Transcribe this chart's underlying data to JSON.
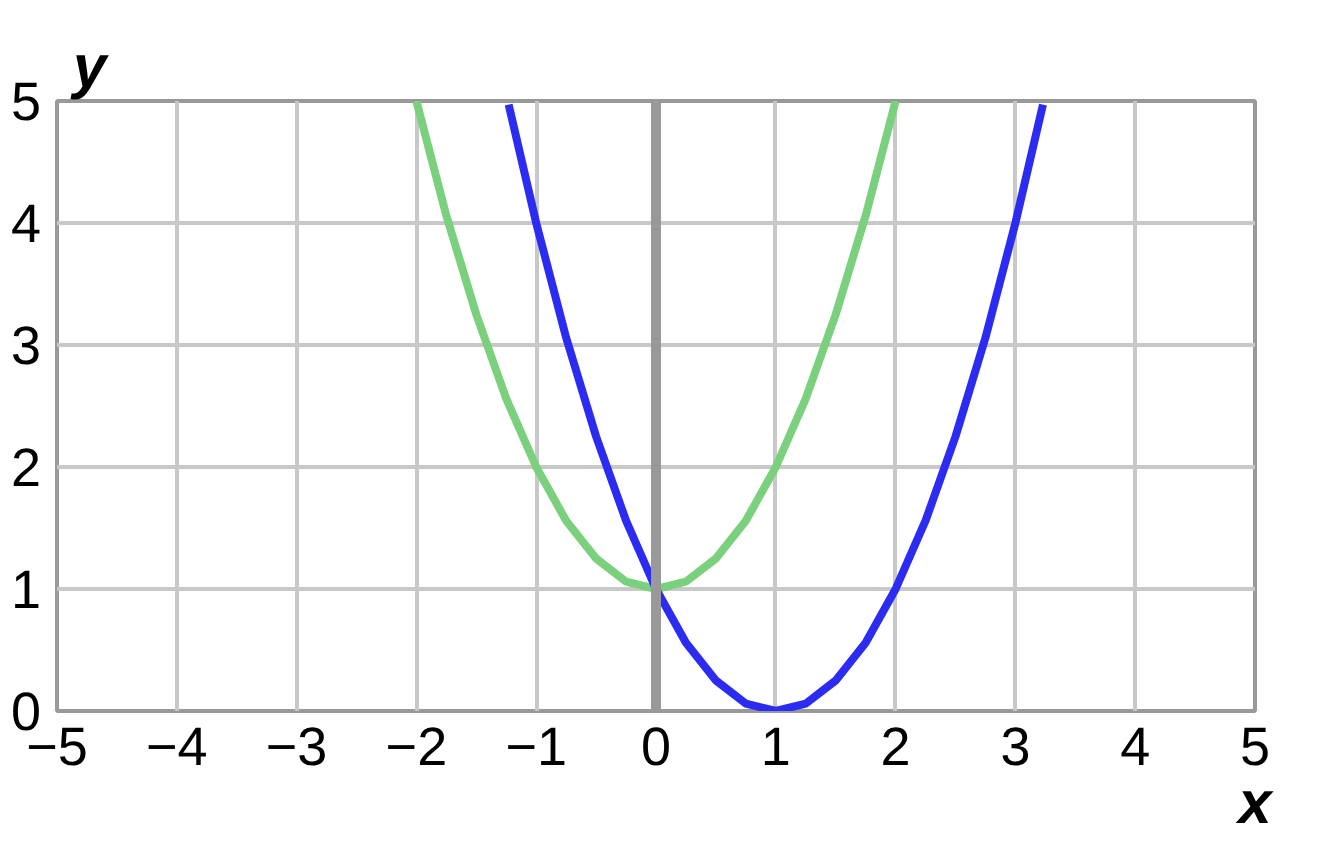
{
  "chart_data": {
    "type": "line",
    "xlabel": "x",
    "ylabel": "y",
    "xlim": [
      -5,
      5
    ],
    "ylim": [
      0,
      5
    ],
    "xticks": [
      {
        "value": -5,
        "label": "−5"
      },
      {
        "value": -4,
        "label": "−4"
      },
      {
        "value": -3,
        "label": "−3"
      },
      {
        "value": -2,
        "label": "−2"
      },
      {
        "value": -1,
        "label": "−1"
      },
      0,
      1,
      2,
      3,
      4,
      5
    ],
    "yticks": [
      0,
      1,
      2,
      3,
      4,
      5
    ],
    "grid": true,
    "marker": "none",
    "line_style": "solid",
    "ref_lines": [
      {
        "axis": "x",
        "value": 0,
        "color": "#999999"
      }
    ],
    "series": [
      {
        "color": "#7ad07c",
        "x": [
          -2,
          -1.75,
          -1.5,
          -1.25,
          -1,
          -0.75,
          -0.5,
          -0.25,
          0,
          0.25,
          0.5,
          0.75,
          1,
          1.25,
          1.5,
          1.75,
          2
        ],
        "values": [
          5,
          4.06,
          3.25,
          2.56,
          2,
          1.56,
          1.25,
          1.06,
          1,
          1.06,
          1.25,
          1.56,
          2,
          2.56,
          3.25,
          4.06,
          5
        ]
      },
      {
        "color": "#2b2bf2",
        "x": [
          -1.23,
          -1,
          -0.75,
          -0.5,
          -0.25,
          0,
          0.25,
          0.5,
          0.75,
          1,
          1.25,
          1.5,
          1.75,
          2,
          2.25,
          2.5,
          2.75,
          3,
          3.23
        ],
        "values": [
          4.97,
          4,
          3.06,
          2.25,
          1.56,
          1,
          0.56,
          0.25,
          0.06,
          0,
          0.06,
          0.25,
          0.56,
          1,
          1.56,
          2.25,
          3.06,
          4,
          4.97
        ]
      }
    ]
  }
}
